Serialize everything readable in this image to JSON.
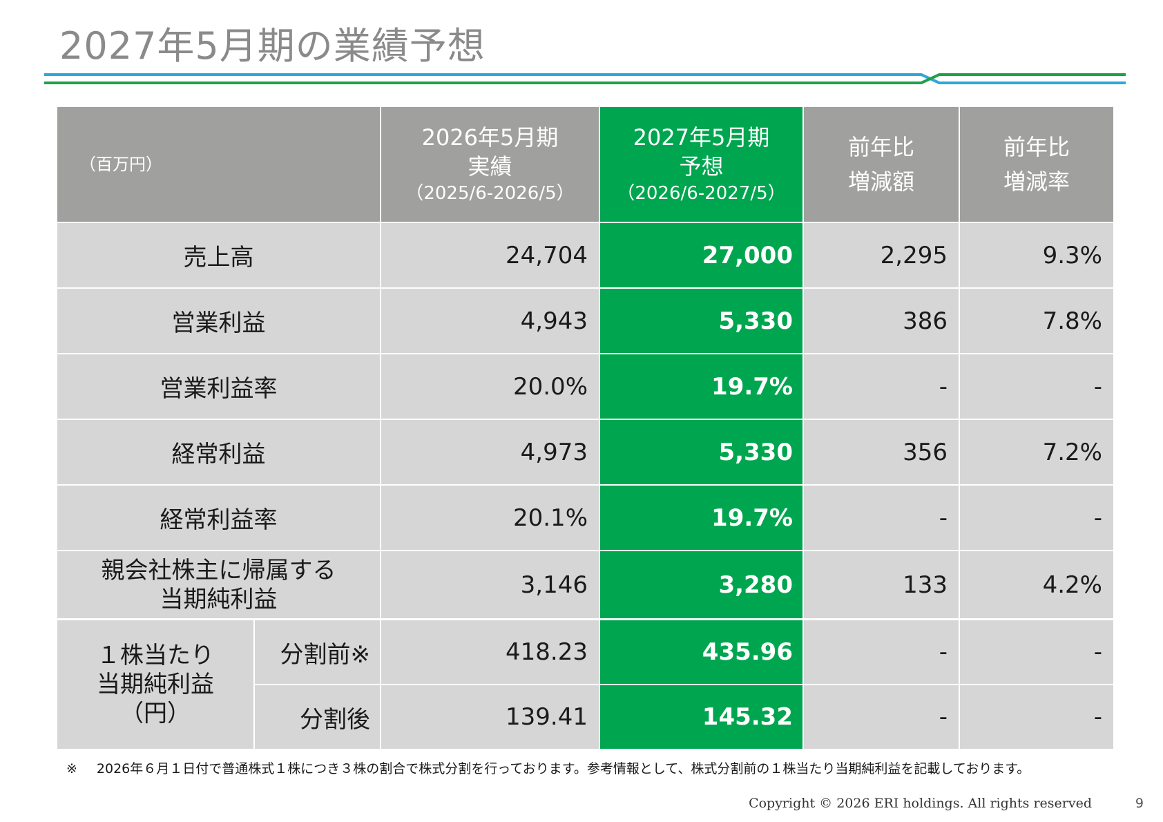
{
  "title": "2027年5月期の業績予想",
  "colors": {
    "header_gray": "#a0a09f",
    "highlight_green": "#00a64f",
    "row_gray": "#d6d6d6",
    "rule_blue": "#2ea7d8",
    "rule_green": "#21a04a"
  },
  "table": {
    "unit": "（百万円）",
    "columns": [
      {
        "line1": "2026年5月期",
        "line2": "実績",
        "sub": "（2025/6-2026/5）"
      },
      {
        "line1": "2027年5月期",
        "line2": "予想",
        "sub": "（2026/6-2027/5）"
      },
      {
        "line1": "前年比",
        "line2": "増減額"
      },
      {
        "line1": "前年比",
        "line2": "増減率"
      }
    ],
    "rows": [
      {
        "label": "売上高",
        "actual": "24,704",
        "forecast": "27,000",
        "change": "2,295",
        "rate": "9.3%"
      },
      {
        "label": "営業利益",
        "actual": "4,943",
        "forecast": "5,330",
        "change": "386",
        "rate": "7.8%"
      },
      {
        "label": "営業利益率",
        "actual": "20.0%",
        "forecast": "19.7%",
        "change": "-",
        "rate": "-"
      },
      {
        "label": "経常利益",
        "actual": "4,973",
        "forecast": "5,330",
        "change": "356",
        "rate": "7.2%"
      },
      {
        "label": "経常利益率",
        "actual": "20.1%",
        "forecast": "19.7%",
        "change": "-",
        "rate": "-"
      },
      {
        "label_line1": "親会社株主に帰属する",
        "label_line2": "当期純利益",
        "actual": "3,146",
        "forecast": "3,280",
        "change": "133",
        "rate": "4.2%"
      }
    ],
    "eps": {
      "label_line1": "１株当たり",
      "label_line2": "当期純利益",
      "label_line3": "（円）",
      "rows": [
        {
          "sublabel": "分割前※",
          "actual": "418.23",
          "forecast": "435.96",
          "change": "-",
          "rate": "-"
        },
        {
          "sublabel": "分割後",
          "actual": "139.41",
          "forecast": "145.32",
          "change": "-",
          "rate": "-"
        }
      ]
    }
  },
  "footnote": {
    "mark": "※",
    "text": "2026年６月１日付で普通株式１株につき３株の割合で株式分割を行っております。参考情報として、株式分割前の１株当たり当期純利益を記載しております。"
  },
  "copyright": "Copyright © 2026 ERI holdings. All rights reserved",
  "page_number": "9"
}
